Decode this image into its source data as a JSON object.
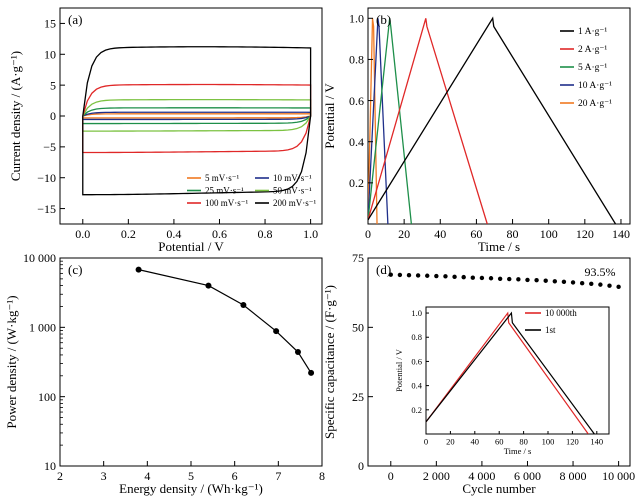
{
  "chart_data": [
    {
      "id": "a",
      "type": "line",
      "panel_label": "(a)",
      "xlabel": "Potential / V",
      "ylabel": "Current density / (A·g⁻¹)",
      "xlim": [
        -0.1,
        1.05
      ],
      "ylim": [
        -17.5,
        17.5
      ],
      "xticks": [
        0.0,
        0.2,
        0.4,
        0.6,
        0.8,
        1.0
      ],
      "xtick_labels": [
        "0.0",
        "0.2",
        "0.4",
        "0.6",
        "0.8",
        "1.0"
      ],
      "yticks": [
        -15,
        -10,
        -5,
        0,
        5,
        10,
        15
      ],
      "ytick_labels": [
        "−15",
        "−10",
        "−5",
        "0",
        "5",
        "10",
        "15"
      ],
      "legend_position": "bottom-right",
      "series": [
        {
          "name": "5 mV·s⁻¹",
          "color": "#f07a22",
          "upper": 0.35,
          "lower": -0.3
        },
        {
          "name": "10 mV·s⁻¹",
          "color": "#1f2f8a",
          "upper": 0.6,
          "lower": -0.55
        },
        {
          "name": "25 mV·s⁻¹",
          "color": "#1e8f4a",
          "upper": 1.3,
          "lower": -1.2
        },
        {
          "name": "50 mV·s⁻¹",
          "color": "#7cc242",
          "upper": 2.6,
          "lower": -2.4
        },
        {
          "name": "100 mV·s⁻¹",
          "color": "#e02828",
          "upper": 5.0,
          "lower": -5.8
        },
        {
          "name": "200 mV·s⁻¹",
          "color": "#000000",
          "upper": 11.0,
          "lower": -12.5
        }
      ]
    },
    {
      "id": "b",
      "type": "line",
      "panel_label": "(b)",
      "xlabel": "Time / s",
      "ylabel": "Potential / V",
      "xlim": [
        0,
        145
      ],
      "ylim": [
        0,
        1.05
      ],
      "xticks": [
        0,
        20,
        40,
        60,
        80,
        100,
        120,
        140
      ],
      "xtick_labels": [
        "0",
        "20",
        "40",
        "60",
        "80",
        "100",
        "120",
        "140"
      ],
      "yticks": [
        0.2,
        0.4,
        0.6,
        0.8,
        1.0
      ],
      "ytick_labels": [
        "0.2",
        "0.4",
        "0.6",
        "0.8",
        "1.0"
      ],
      "legend_position": "top-right",
      "series": [
        {
          "name": "1 A·g⁻¹",
          "color": "#000000",
          "peak_time": 69,
          "end_time": 137
        },
        {
          "name": "2 A·g⁻¹",
          "color": "#e02828",
          "peak_time": 32,
          "end_time": 66
        },
        {
          "name": "5 A·g⁻¹",
          "color": "#1e8f4a",
          "peak_time": 12,
          "end_time": 24
        },
        {
          "name": "10 A·g⁻¹",
          "color": "#1f2f8a",
          "peak_time": 5.5,
          "end_time": 11
        },
        {
          "name": "20 A·g⁻¹",
          "color": "#f07a22",
          "peak_time": 2.5,
          "end_time": 5
        }
      ]
    },
    {
      "id": "c",
      "type": "line",
      "panel_label": "(c)",
      "xlabel": "Energy density / (Wh·kg⁻¹)",
      "ylabel": "Power density / (W·kg⁻¹)",
      "y_scale": "log",
      "xlim": [
        2,
        8
      ],
      "ylim": [
        10,
        10000
      ],
      "xticks": [
        2,
        3,
        4,
        5,
        6,
        7,
        8
      ],
      "xtick_labels": [
        "2",
        "3",
        "4",
        "5",
        "6",
        "7",
        "8"
      ],
      "yticks": [
        10,
        100,
        1000,
        10000
      ],
      "ytick_labels": [
        "10",
        "100",
        "1 000",
        "10 000"
      ],
      "x": [
        3.8,
        5.4,
        6.2,
        6.95,
        7.45,
        7.75
      ],
      "y": [
        6800,
        4000,
        2100,
        880,
        440,
        220
      ]
    },
    {
      "id": "d",
      "type": "scatter",
      "panel_label": "(d)",
      "xlabel": "Cycle number",
      "ylabel": "Specific capacitance / (F·g⁻¹)",
      "annotation": "93.5%",
      "xlim": [
        -1000,
        10500
      ],
      "ylim": [
        0,
        75
      ],
      "xticks": [
        0,
        2000,
        4000,
        6000,
        8000,
        10000
      ],
      "xtick_labels": [
        "0",
        "2 000",
        "4 000",
        "6 000",
        "8 000",
        "10 000"
      ],
      "yticks": [
        0,
        25,
        50,
        75
      ],
      "ytick_labels": [
        "0",
        "25",
        "50",
        "75"
      ],
      "x": [
        0,
        400,
        800,
        1200,
        1600,
        2000,
        2400,
        2800,
        3200,
        3600,
        4000,
        4400,
        4800,
        5200,
        5600,
        6000,
        6400,
        6800,
        7200,
        7600,
        8000,
        8400,
        8800,
        9200,
        9600,
        10000
      ],
      "y": [
        69.0,
        68.9,
        68.8,
        68.7,
        68.6,
        68.5,
        68.4,
        68.2,
        68.1,
        67.9,
        67.8,
        67.7,
        67.5,
        67.4,
        67.3,
        67.1,
        67.0,
        66.8,
        66.6,
        66.4,
        66.2,
        65.9,
        65.7,
        65.4,
        65.0,
        64.6
      ],
      "inset": {
        "type": "line",
        "xlabel": "Time / s",
        "ylabel": "Potential / V",
        "xlim": [
          0,
          150
        ],
        "ylim": [
          0,
          1.05
        ],
        "xticks": [
          0,
          20,
          40,
          60,
          80,
          100,
          120,
          140
        ],
        "xtick_labels": [
          "0",
          "20",
          "40",
          "60",
          "80",
          "100",
          "120",
          "140"
        ],
        "yticks": [
          0.2,
          0.4,
          0.6,
          0.8,
          1.0
        ],
        "ytick_labels": [
          "0.2",
          "0.4",
          "0.6",
          "0.8",
          "1.0"
        ],
        "legend_position": "top-right",
        "series": [
          {
            "name": "10 000th",
            "color": "#e02828",
            "peak_time": 67,
            "end_time": 133
          },
          {
            "name": "1st",
            "color": "#000000",
            "peak_time": 70,
            "end_time": 138
          }
        ]
      }
    }
  ]
}
